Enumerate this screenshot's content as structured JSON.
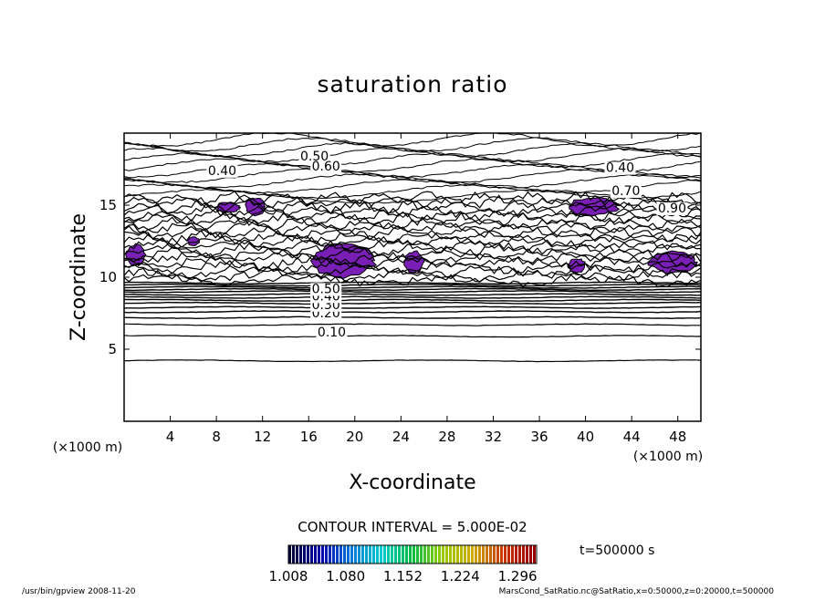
{
  "chart_data": {
    "type": "contour",
    "title": "saturation ratio",
    "xlabel": "X-coordinate",
    "ylabel": "Z-coordinate",
    "x_unit": "(×1000 m)",
    "y_unit": "(×1000 m)",
    "xlim": [
      0,
      50
    ],
    "ylim": [
      0,
      20
    ],
    "x_ticks": [
      4,
      8,
      12,
      16,
      20,
      24,
      28,
      32,
      36,
      40,
      44,
      48
    ],
    "y_ticks": [
      5,
      10,
      15
    ],
    "contour_interval": "CONTOUR INTERVAL = 5.000E-02",
    "contour_labels": [
      {
        "text": "0.10",
        "x": 18,
        "z": 5.9
      },
      {
        "text": "0.20",
        "x": 17.5,
        "z": 7.2
      },
      {
        "text": "0.30",
        "x": 17.5,
        "z": 7.8
      },
      {
        "text": "0.40",
        "x": 17.5,
        "z": 8.4
      },
      {
        "text": "0.50",
        "x": 17.5,
        "z": 8.9
      },
      {
        "text": "0.40",
        "x": 8.5,
        "z": 17.1
      },
      {
        "text": "0.50",
        "x": 16.5,
        "z": 18.1
      },
      {
        "text": "0.60",
        "x": 17.5,
        "z": 17.4
      },
      {
        "text": "0.40",
        "x": 43,
        "z": 17.3
      },
      {
        "text": "0.70",
        "x": 43.5,
        "z": 15.7
      },
      {
        "text": "0.90",
        "x": 47.5,
        "z": 14.5
      }
    ],
    "supersaturated_regions": [
      {
        "x": [
          16.2,
          21.8
        ],
        "z": [
          10.0,
          12.3
        ]
      },
      {
        "x": [
          38.5,
          42.8
        ],
        "z": [
          14.3,
          15.5
        ]
      },
      {
        "x": [
          8.0,
          10.0
        ],
        "z": [
          14.5,
          15.2
        ]
      },
      {
        "x": [
          10.5,
          12.2
        ],
        "z": [
          14.3,
          15.5
        ]
      },
      {
        "x": [
          24.3,
          26.0
        ],
        "z": [
          10.3,
          11.8
        ]
      },
      {
        "x": [
          0.2,
          1.8
        ],
        "z": [
          10.8,
          12.3
        ]
      },
      {
        "x": [
          45.5,
          49.5
        ],
        "z": [
          10.3,
          11.8
        ]
      },
      {
        "x": [
          38.5,
          40.0
        ],
        "z": [
          10.3,
          11.3
        ]
      },
      {
        "x": [
          5.5,
          6.5
        ],
        "z": [
          12.2,
          12.8
        ]
      }
    ],
    "colorbar": {
      "ticks": [
        "1.008",
        "1.080",
        "1.152",
        "1.224",
        "1.296"
      ],
      "min": 1.008,
      "max": 1.32,
      "colors": [
        "#000033",
        "#0000aa",
        "#0077dd",
        "#00cccc",
        "#00bb44",
        "#99cc00",
        "#ccaa00",
        "#cc3300",
        "#990000"
      ]
    },
    "region_color": "#7a1fb5",
    "time_label": "t=500000 s",
    "grid": false
  },
  "footer": {
    "left": "/usr/bin/gpview   2008-11-20",
    "right": "MarsCond_SatRatio.nc@SatRatio,x=0:50000,z=0:20000,t=500000"
  }
}
